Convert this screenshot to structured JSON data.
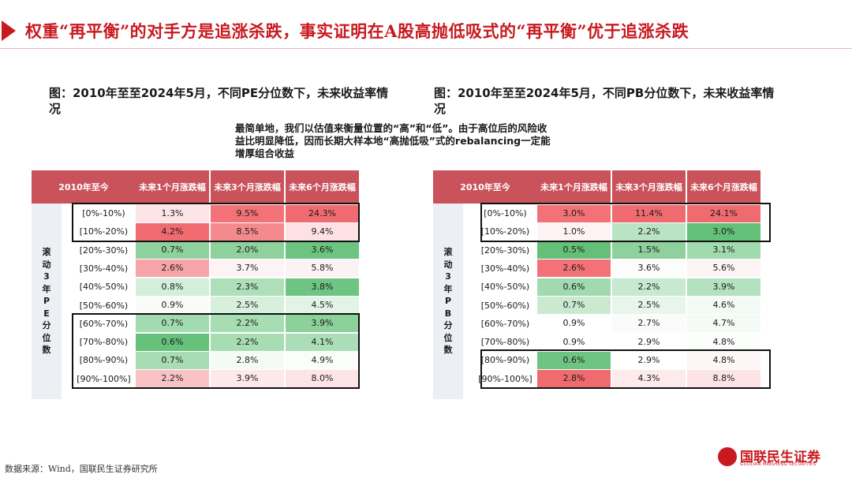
{
  "title": "权重“再平衡”的对手方是追涨杀跌，事实证明在A股高抛低吸式的“再平衡”优于追涨杀跌",
  "left_caption": "图：2010年至至2024年5月，不同PE分位数下，未来收益率情况",
  "right_caption": "图：2010年至至2024年5月，不同PB分位数下，未来收益率情况",
  "note": "最简单地，我们以估值来衡量位置的“高”和“低”。由于高位后的风险收益比明显降低，因而长期大样本地“高抛低吸”式的rebalancing一定能增厚组合收益",
  "footer": "数据来源：Wind，国联民生证券研究所",
  "logo": {
    "name": "国联民生证券",
    "sub": "GUOLIAN MINSHENG SECURITIES"
  },
  "colors": {
    "accent": "#c8191f",
    "header_bg": "#c9525b",
    "side_bg": "#eceff4"
  },
  "tables": [
    {
      "corner": "2010年至今",
      "columns": [
        "未来1个月涨跌幅",
        "未来3个月涨跌幅",
        "未来6个月涨跌幅"
      ],
      "side_label": [
        "滚",
        "动",
        "3",
        "年",
        "P",
        "E",
        "分",
        "位",
        "数"
      ],
      "rows": [
        {
          "label": "[0%-10%)",
          "values": [
            "1.3%",
            "9.5%",
            "24.3%"
          ],
          "colors": [
            "#fde4e6",
            "#f37277",
            "#f06b70"
          ]
        },
        {
          "label": "[10%-20%)",
          "values": [
            "4.2%",
            "8.5%",
            "9.4%"
          ],
          "colors": [
            "#f06b70",
            "#f58a8e",
            "#fde1e3"
          ]
        },
        {
          "label": "[20%-30%)",
          "values": [
            "0.7%",
            "2.0%",
            "3.6%"
          ],
          "colors": [
            "#8fd19c",
            "#8fd19c",
            "#6cc480"
          ]
        },
        {
          "label": "[30%-40%)",
          "values": [
            "2.6%",
            "3.7%",
            "5.8%"
          ],
          "colors": [
            "#f6a4a7",
            "#fdf3f4",
            "#fdf2f3"
          ]
        },
        {
          "label": "[40%-50%)",
          "values": [
            "0.8%",
            "2.3%",
            "3.8%"
          ],
          "colors": [
            "#d3eedb",
            "#addfb9",
            "#6ec583"
          ]
        },
        {
          "label": "[50%-60%)",
          "values": [
            "0.9%",
            "2.5%",
            "4.5%"
          ],
          "colors": [
            "#f9fbf9",
            "#d7efdd",
            "#e2f4e6"
          ]
        },
        {
          "label": "[60%-70%)",
          "values": [
            "0.7%",
            "2.2%",
            "3.9%"
          ],
          "colors": [
            "#a3dbb0",
            "#a6ddb2",
            "#8cd09a"
          ]
        },
        {
          "label": "[70%-80%)",
          "values": [
            "0.6%",
            "2.2%",
            "4.1%"
          ],
          "colors": [
            "#66c27b",
            "#a8ddb3",
            "#abdeb7"
          ]
        },
        {
          "label": "[80%-90%)",
          "values": [
            "0.7%",
            "2.8%",
            "4.9%"
          ],
          "colors": [
            "#a8ddb3",
            "#f4fbf5",
            "#fbfdfb"
          ]
        },
        {
          "label": "[90%-100%]",
          "values": [
            "2.2%",
            "3.9%",
            "8.0%"
          ],
          "colors": [
            "#f9c3c6",
            "#fde9ea",
            "#fde4e6"
          ]
        }
      ]
    },
    {
      "corner": "2010年至今",
      "columns": [
        "未来1个月涨跌幅",
        "未来3个月涨跌幅",
        "未来6个月涨跌幅"
      ],
      "side_label": [
        "滚",
        "动",
        "3",
        "年",
        "P",
        "B",
        "分",
        "位",
        "数"
      ],
      "rows": [
        {
          "label": "[0%-10%)",
          "values": [
            "3.0%",
            "11.4%",
            "24.1%"
          ],
          "colors": [
            "#f37277",
            "#f06b70",
            "#f06b70"
          ]
        },
        {
          "label": "[10%-20%)",
          "values": [
            "1.0%",
            "2.2%",
            "3.0%"
          ],
          "colors": [
            "#fdf3f4",
            "#b9e3c3",
            "#62c078"
          ]
        },
        {
          "label": "[20%-30%)",
          "values": [
            "0.5%",
            "1.5%",
            "3.1%"
          ],
          "colors": [
            "#64c079",
            "#8fd19c",
            "#a1daae"
          ]
        },
        {
          "label": "[30%-40%)",
          "values": [
            "2.6%",
            "3.6%",
            "5.6%"
          ],
          "colors": [
            "#f37277",
            "#fbfdfb",
            "#fdf4f5"
          ]
        },
        {
          "label": "[40%-50%)",
          "values": [
            "0.6%",
            "2.2%",
            "3.9%"
          ],
          "colors": [
            "#a1daae",
            "#c6e9cf",
            "#b4e1bf"
          ]
        },
        {
          "label": "[50%-60%)",
          "values": [
            "0.7%",
            "2.5%",
            "4.6%"
          ],
          "colors": [
            "#c9ead1",
            "#e7f5ea",
            "#f4faf5"
          ]
        },
        {
          "label": "[60%-70%)",
          "values": [
            "0.9%",
            "2.7%",
            "4.7%"
          ],
          "colors": [
            "#ffffff",
            "#f9fcf9",
            "#f4faf5"
          ]
        },
        {
          "label": "[70%-80%)",
          "values": [
            "0.9%",
            "2.9%",
            "4.8%"
          ],
          "colors": [
            "#ffffff",
            "#ffffff",
            "#fbfdfb"
          ]
        },
        {
          "label": "[80%-90%)",
          "values": [
            "0.6%",
            "2.9%",
            "4.8%"
          ],
          "colors": [
            "#6ec583",
            "#ffffff",
            "#fdf6f6"
          ]
        },
        {
          "label": "[90%-100%]",
          "values": [
            "2.8%",
            "4.3%",
            "8.8%"
          ],
          "colors": [
            "#f06b70",
            "#fdeaeb",
            "#fce3e5"
          ]
        }
      ]
    }
  ]
}
